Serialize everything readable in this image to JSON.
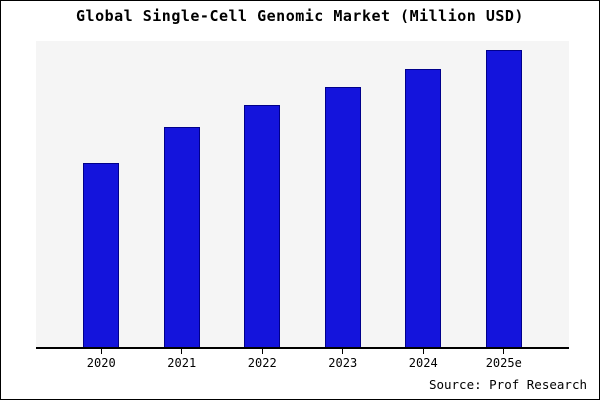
{
  "title": "Global Single-Cell Genomic Market (Million USD)",
  "source_credit": "Source: Prof Research",
  "colors": {
    "bar_fill": "#1414dc",
    "bar_edge": "#00008b",
    "plot_background": "#f5f5f5",
    "page_background": "#ffffff",
    "axis": "#000000",
    "text": "#000000"
  },
  "chart_data": {
    "type": "bar",
    "title": "Global Single-Cell Genomic Market (Million USD)",
    "categories": [
      "2020",
      "2021",
      "2022",
      "2023",
      "2024",
      "2025e"
    ],
    "values": [
      60,
      72,
      79,
      85,
      91,
      97
    ],
    "xlabel": "",
    "ylabel": "",
    "ylim": [
      0,
      100
    ],
    "grid": false,
    "legend": false,
    "y_axis_labels_shown": false,
    "note": "values are relative estimates (percent of plot height); no numeric y-axis is rendered in the chart"
  }
}
